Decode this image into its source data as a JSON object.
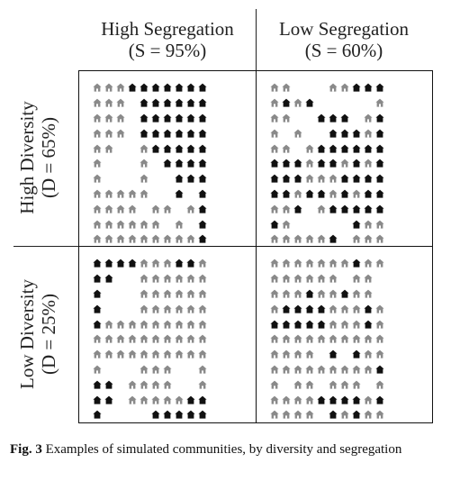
{
  "columns": [
    {
      "line1": "High Segregation",
      "line2": "(S = 95%)"
    },
    {
      "line1": "Low Segregation",
      "line2": "(S = 60%)"
    }
  ],
  "rows": [
    {
      "line1": "High Diversity",
      "line2": "(D = 65%)"
    },
    {
      "line1": "Low Diversity",
      "line2": "(D = 25%)"
    }
  ],
  "caption": {
    "label": "Fig. 3",
    "text": "Examples of simulated communities, by diversity and segregation"
  },
  "legend_colors": {
    "black_house": "#111111",
    "gray_house": "#8a8a8a"
  },
  "panels": {
    "high_diversity_high_segregation": [
      "gggbbbbbbb",
      "ggg.bbbbbb",
      "ggg.bbbbbb",
      "ggg.bbbbbb",
      "gg..gbbbbb",
      "g...g.bbbb",
      "g...g..bbb",
      "ggggg..b.b",
      "gggg.gg.gb",
      "gggggg.g.b",
      "gggggggggb"
    ],
    "high_diversity_low_segregation": [
      "gg...ggbbb",
      "gbgb.....g",
      "gg..bbb.gb",
      "g.g..bbbgb",
      "gg.gbbbbbb",
      "bbbgbbgbgb",
      "bbbgggbbbb",
      "bbgbbgbgbb",
      "ggb.gbbbbb",
      "bg.....bgg",
      "gggggb.ggg"
    ],
    "low_diversity_high_segregation": [
      "bbbbgggbbg",
      "bb..gggggg",
      "b...gggggg",
      "b...gggggg",
      "bggggggggg",
      "gggggggggg",
      "gggggggggg",
      "g...ggg..g",
      "bb.gggg..g",
      "bb.gggggbb",
      "b....bbbbb"
    ],
    "low_diversity_low_segregation": [
      "gggggggbgg",
      "gggggg.gg.",
      "gggbggbgg.",
      "gbbbbgggbg",
      "bbbbbgggbg",
      "gggggggggg",
      "gggg.b.bgg",
      "gggggggggb",
      "g.gg.ggg.g",
      "ggggbbbbgb",
      "gggg.bgbgg"
    ]
  }
}
